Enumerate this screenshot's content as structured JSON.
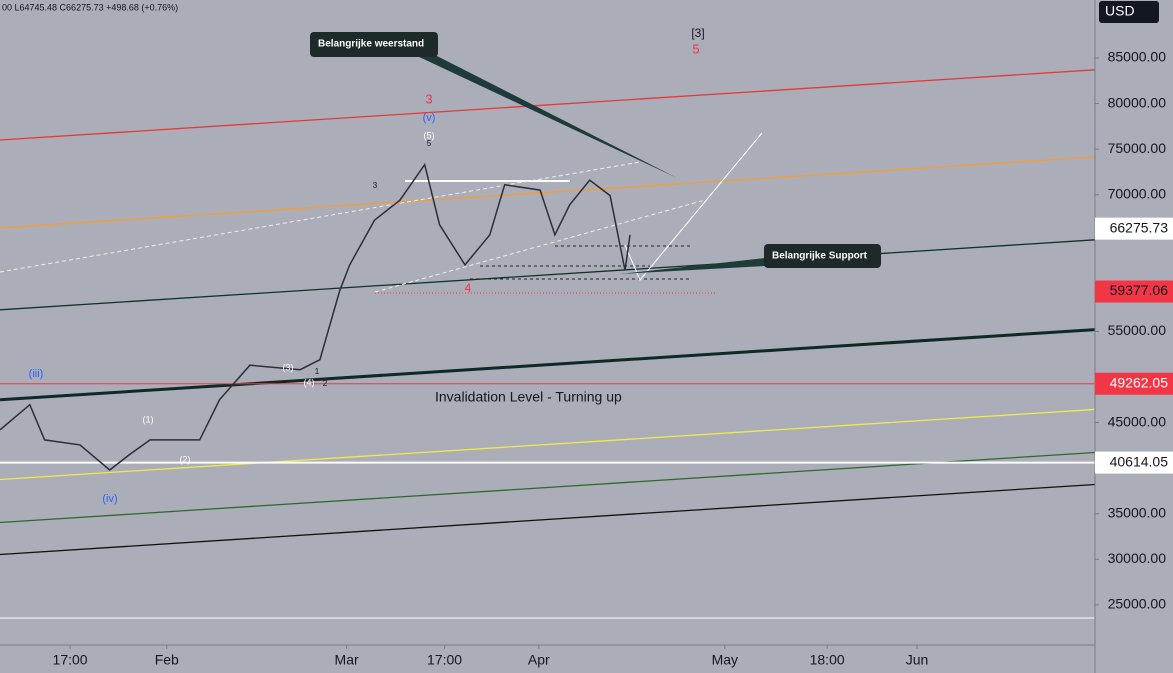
{
  "chart_data": {
    "type": "line",
    "legend_text": "00 L64745.48 C66275.73 +498.68 (+0.76%)",
    "currency": "USD",
    "x": [
      -26.9,
      -22.1,
      -19.7,
      -14.0,
      -9.2,
      -6.0,
      -2.7,
      5.3,
      8.5,
      13.4,
      21.5,
      24.7,
      27.9,
      29.5,
      33.5,
      37.6,
      41.6,
      44.0,
      48.1,
      52.1,
      54.5,
      60.2,
      62.6,
      65.0,
      68.2,
      71.5,
      73.9,
      74.7
    ],
    "series": [
      {
        "color": "#2b2f36",
        "values": [
          44200,
          46960,
          43100,
          42550,
          39800,
          41500,
          43100,
          43100,
          47500,
          51300,
          50800,
          51900,
          59500,
          62300,
          67200,
          69400,
          73300,
          66700,
          62300,
          65600,
          71100,
          70500,
          65600,
          68900,
          71600,
          69900,
          61700,
          65600
        ]
      }
    ],
    "xlim": [
      -26.9,
      149.7
    ],
    "ylim": [
      20600,
      91360
    ],
    "xticks": [
      {
        "value": -15.6,
        "label": "17:00"
      },
      {
        "value": 0,
        "label": "Feb"
      },
      {
        "value": 29,
        "label": "Mar"
      },
      {
        "value": 44.8,
        "label": "17:00"
      },
      {
        "value": 60,
        "label": "Apr"
      },
      {
        "value": 90,
        "label": "May"
      },
      {
        "value": 106.5,
        "label": "18:00"
      },
      {
        "value": 121,
        "label": "Jun"
      }
    ],
    "yticks": [
      {
        "value": 25000,
        "label": "25000.00"
      },
      {
        "value": 30000,
        "label": "30000.00"
      },
      {
        "value": 35000,
        "label": "35000.00"
      },
      {
        "value": 45000,
        "label": "45000.00"
      },
      {
        "value": 55000,
        "label": "55000.00"
      },
      {
        "value": 70000,
        "label": "70000.00"
      },
      {
        "value": 75000,
        "label": "75000.00"
      },
      {
        "value": 80000,
        "label": "80000.00"
      },
      {
        "value": 85000,
        "label": "85000.00"
      }
    ],
    "trendlines": [
      {
        "color": "#e53935",
        "x": [
          -26.9,
          149.7
        ],
        "y": [
          76000,
          83700
        ]
      },
      {
        "color": "#f59c34",
        "x": [
          -26.9,
          149.7
        ],
        "y": [
          66360,
          74150
        ]
      },
      {
        "color": "#12302c",
        "x": [
          -26.9,
          149.7
        ],
        "y": [
          57370,
          65050
        ]
      },
      {
        "color": "#0e2a24",
        "x": [
          -26.9,
          149.7
        ],
        "y": [
          47500,
          55200
        ]
      },
      {
        "color": "#f2e94e",
        "x": [
          -26.9,
          149.7
        ],
        "y": [
          38760,
          46440
        ]
      },
      {
        "color": "#2e6b2a",
        "x": [
          -26.9,
          149.7
        ],
        "y": [
          34040,
          41720
        ]
      },
      {
        "color": "#111111",
        "x": [
          -26.9,
          149.7
        ],
        "y": [
          30530,
          38210
        ]
      }
    ],
    "price_levels": [
      {
        "value": 66275.73,
        "color": "#ffffff",
        "text_color": "#131722"
      },
      {
        "value": 59377.06,
        "color": "#f23645",
        "text_color": "#131722"
      },
      {
        "value": 49262.05,
        "color": "#f23645",
        "text_color": "#ffffff"
      },
      {
        "value": 40614.05,
        "color": "#ffffff",
        "text_color": "#131722"
      }
    ],
    "annotations": {
      "resistance": "Belangrijke weerstand",
      "support": "Belangrijke Support",
      "invalidation": "Invalidation Level - Turning up",
      "waves": [
        "[3]",
        "5",
        "3",
        "(v)",
        "(5)",
        "5",
        "3",
        "4",
        "(iii)",
        "(iv)",
        "(1)",
        "(2)",
        "(3)",
        "1",
        "(4)",
        "2"
      ]
    }
  }
}
